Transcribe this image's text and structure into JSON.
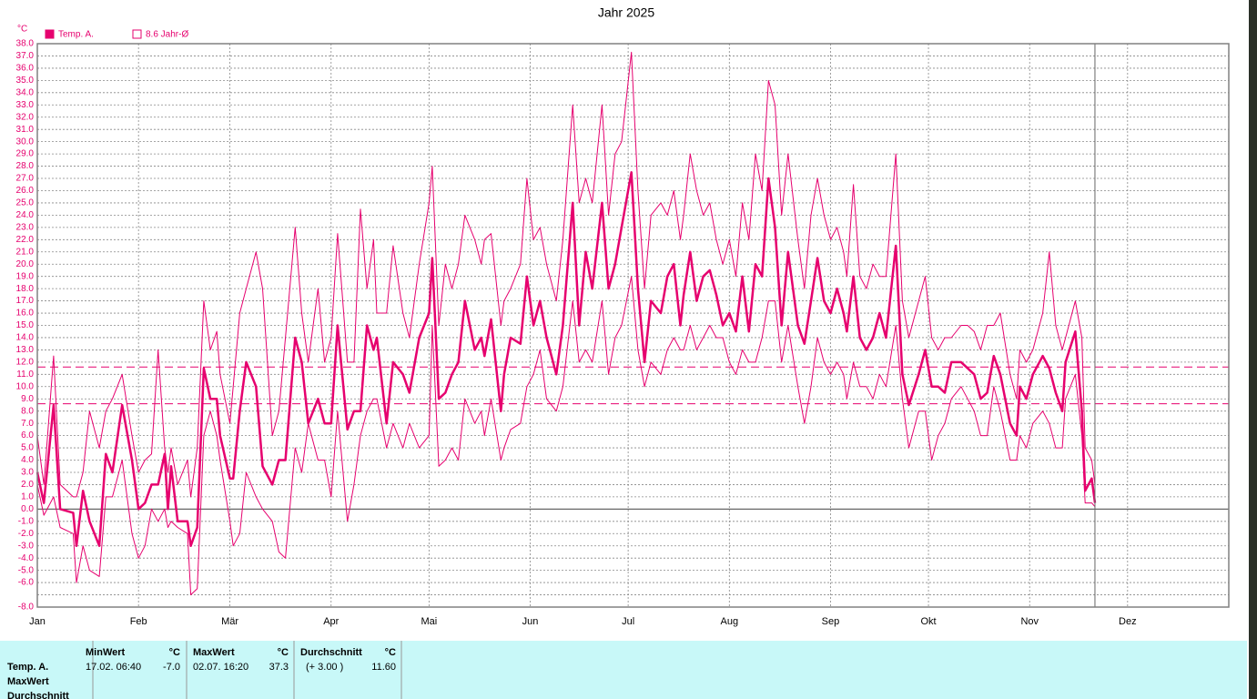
{
  "chart_data": {
    "type": "line",
    "title": "Jahr 2025",
    "y_unit": "°C",
    "color": "#e6006e",
    "grid": true,
    "legend_position": "top-left",
    "xlim": [
      0,
      365
    ],
    "ylim": [
      -8,
      38
    ],
    "xticks": [
      {
        "value": 0,
        "label": "Jan"
      },
      {
        "value": 31,
        "label": "Feb"
      },
      {
        "value": 59,
        "label": "Mär"
      },
      {
        "value": 90,
        "label": "Apr"
      },
      {
        "value": 120,
        "label": "Mai"
      },
      {
        "value": 151,
        "label": "Jun"
      },
      {
        "value": 181,
        "label": "Jul"
      },
      {
        "value": 212,
        "label": "Aug"
      },
      {
        "value": 243,
        "label": "Sep"
      },
      {
        "value": 273,
        "label": "Okt"
      },
      {
        "value": 304,
        "label": "Nov"
      },
      {
        "value": 334,
        "label": "Dez"
      }
    ],
    "yticks": [
      {
        "value": 38,
        "label": "38.0"
      },
      {
        "value": 37,
        "label": "37.0"
      },
      {
        "value": 36,
        "label": "36.0"
      },
      {
        "value": 35,
        "label": "35.0"
      },
      {
        "value": 34,
        "label": "34.0"
      },
      {
        "value": 33,
        "label": "33.0"
      },
      {
        "value": 32,
        "label": "32.0"
      },
      {
        "value": 31,
        "label": "31.0"
      },
      {
        "value": 30,
        "label": "30.0"
      },
      {
        "value": 29,
        "label": "29.0"
      },
      {
        "value": 28,
        "label": "28.0"
      },
      {
        "value": 27,
        "label": "27.0"
      },
      {
        "value": 26,
        "label": "26.0"
      },
      {
        "value": 25,
        "label": "25.0"
      },
      {
        "value": 24,
        "label": "24.0"
      },
      {
        "value": 23,
        "label": "23.0"
      },
      {
        "value": 22,
        "label": "22.0"
      },
      {
        "value": 21,
        "label": "21.0"
      },
      {
        "value": 20,
        "label": "20.0"
      },
      {
        "value": 19,
        "label": "19.0"
      },
      {
        "value": 18,
        "label": "18.0"
      },
      {
        "value": 17,
        "label": "17.0"
      },
      {
        "value": 16,
        "label": "16.0"
      },
      {
        "value": 15,
        "label": "15.0"
      },
      {
        "value": 14,
        "label": "14.0"
      },
      {
        "value": 13,
        "label": "13.0"
      },
      {
        "value": 12,
        "label": "12.0"
      },
      {
        "value": 11,
        "label": "11.0"
      },
      {
        "value": 10,
        "label": "10.0"
      },
      {
        "value": 9,
        "label": "9.0"
      },
      {
        "value": 8,
        "label": "8.0"
      },
      {
        "value": 7,
        "label": "7.0"
      },
      {
        "value": 6,
        "label": "6.0"
      },
      {
        "value": 5,
        "label": "5.0"
      },
      {
        "value": 4,
        "label": "4.0"
      },
      {
        "value": 3,
        "label": "3.0"
      },
      {
        "value": 2,
        "label": "2.0"
      },
      {
        "value": 1,
        "label": "1.0"
      },
      {
        "value": 0,
        "label": "0.0"
      },
      {
        "value": -1,
        "label": "-1.0"
      },
      {
        "value": -2,
        "label": "-2.0"
      },
      {
        "value": -3,
        "label": "-3.0"
      },
      {
        "value": -4,
        "label": "-4.0"
      },
      {
        "value": -5,
        "label": "-5.0"
      },
      {
        "value": -6,
        "label": "-6.0"
      },
      {
        "value": -7,
        "label": null
      },
      {
        "value": -8,
        "label": "-8.0"
      }
    ],
    "reference_lines": [
      {
        "value": 11.6
      },
      {
        "value": 8.6,
        "name": "8.6 Jahr-Ø"
      }
    ],
    "x": [
      0,
      2,
      5,
      7,
      11,
      12,
      14,
      16,
      19,
      21,
      23,
      26,
      29,
      31,
      33,
      35,
      37,
      39,
      40,
      41,
      43,
      46,
      47,
      49,
      51,
      53,
      55,
      56,
      59,
      60,
      62,
      64,
      67,
      69,
      72,
      74,
      76,
      79,
      81,
      83,
      86,
      88,
      90,
      92,
      95,
      97,
      99,
      101,
      103,
      104,
      107,
      109,
      112,
      114,
      117,
      120,
      121,
      123,
      125,
      127,
      129,
      131,
      134,
      136,
      137,
      139,
      142,
      143,
      145,
      148,
      150,
      152,
      154,
      156,
      159,
      161,
      164,
      166,
      168,
      170,
      173,
      175,
      177,
      179,
      182,
      184,
      186,
      188,
      191,
      193,
      195,
      197,
      198,
      200,
      202,
      204,
      206,
      208,
      210,
      212,
      214,
      216,
      218,
      220,
      222,
      224,
      226,
      228,
      230,
      233,
      235,
      237,
      239,
      241,
      243,
      245,
      247,
      248,
      250,
      252,
      254,
      256,
      258,
      260,
      263,
      265,
      267,
      270,
      272,
      274,
      276,
      278,
      280,
      283,
      285,
      287,
      289,
      291,
      293,
      295,
      298,
      300,
      301,
      303,
      305,
      308,
      310,
      312,
      314,
      315,
      318,
      320,
      321,
      323,
      324
    ],
    "series": [
      {
        "name": "Temp. A.",
        "width": 2.5,
        "values": [
          3,
          0.5,
          8.5,
          0,
          -0.3,
          -3,
          1.5,
          -1,
          -3,
          4.5,
          3,
          8.5,
          4,
          0,
          0.5,
          2,
          2,
          4.5,
          0,
          3.5,
          -1,
          -1,
          -3,
          -1.5,
          11.5,
          9,
          9,
          6,
          2.5,
          2.5,
          8,
          12,
          10,
          3.5,
          2,
          4,
          4,
          14,
          12,
          7,
          9,
          7,
          7,
          15,
          6.5,
          8,
          8,
          15,
          13,
          14,
          7,
          12,
          11,
          9.5,
          14,
          16,
          20.5,
          9,
          9.5,
          11,
          12,
          17,
          13,
          14,
          12.5,
          15.5,
          8,
          11,
          14,
          13.5,
          19,
          15,
          17,
          14,
          11,
          15,
          25,
          15,
          21,
          18,
          25,
          18,
          20,
          23,
          27.5,
          18,
          12,
          17,
          16,
          19,
          20,
          15,
          17.5,
          21,
          17,
          19,
          19.5,
          17.5,
          15,
          16,
          14.5,
          19,
          14.5,
          20,
          19,
          27,
          23,
          15,
          21,
          15,
          13.5,
          17,
          20.5,
          17,
          16,
          18,
          16,
          14.5,
          19,
          14,
          13,
          14,
          16,
          14,
          21.5,
          11,
          8.5,
          11,
          13,
          10,
          10,
          9.5,
          12,
          12,
          11.5,
          11,
          9,
          9.5,
          12.5,
          11,
          7,
          6,
          10,
          9,
          11,
          12.5,
          11.5,
          9.5,
          8,
          12,
          14.5,
          8,
          1.5,
          2.5,
          0.5
        ]
      },
      {
        "width": 1,
        "values": [
          6,
          2,
          12.5,
          2,
          1,
          1,
          3,
          8,
          5,
          8,
          9,
          11,
          6,
          3,
          4,
          4.5,
          13,
          5,
          3,
          5,
          2,
          4,
          1,
          5,
          17,
          13,
          14.5,
          11,
          7,
          10,
          16,
          18,
          21,
          18,
          6,
          8,
          14,
          23,
          16,
          12,
          18,
          12,
          14,
          22.5,
          12,
          12,
          24.5,
          18,
          22,
          16,
          16,
          21.5,
          16,
          14,
          20,
          25,
          28,
          15,
          20,
          18,
          20,
          24,
          22,
          20,
          22,
          22.5,
          15,
          17,
          18,
          20,
          27,
          22,
          23,
          20,
          17,
          22,
          33,
          25,
          27,
          25,
          33,
          24,
          29,
          30,
          37.3,
          26,
          18,
          24,
          25,
          24,
          26,
          22,
          24,
          29,
          26,
          24,
          25,
          22,
          20,
          22,
          19,
          25,
          22,
          29,
          26,
          35,
          33,
          24,
          29,
          22,
          18,
          24,
          27,
          24,
          22,
          23,
          21,
          19,
          26.5,
          19,
          18,
          20,
          19,
          19,
          29,
          17,
          14,
          17,
          19,
          14,
          13,
          14,
          14,
          15,
          15,
          14.5,
          13,
          15,
          15,
          16,
          11,
          9,
          13,
          12,
          13,
          16,
          21,
          15,
          13,
          14,
          17,
          14,
          5,
          4,
          2
        ]
      },
      {
        "width": 1,
        "values": [
          2,
          -0.5,
          1,
          -1.5,
          -2,
          -6,
          -3,
          -5,
          -5.5,
          1,
          1,
          4,
          -2,
          -4,
          -3,
          0,
          -1,
          0,
          -1.5,
          -1,
          -1.5,
          -2,
          -7,
          -6.5,
          6,
          8,
          6,
          4,
          -1,
          -3,
          -2,
          3,
          1,
          0,
          -1,
          -3.5,
          -4,
          5,
          3,
          7,
          4,
          4,
          1,
          8,
          -1,
          2,
          6,
          8,
          9,
          9,
          5,
          7,
          5,
          7,
          5,
          6,
          15,
          3.5,
          4,
          5,
          4,
          9,
          7,
          8,
          6,
          9,
          4,
          5,
          6.5,
          7,
          10,
          11,
          13,
          9,
          8,
          10,
          17,
          12,
          13,
          12,
          17,
          11,
          14,
          15,
          19,
          13,
          10,
          12,
          11,
          13,
          14,
          13,
          13,
          15,
          13,
          14,
          15,
          14,
          14,
          12,
          11,
          13,
          12,
          12,
          14,
          17,
          17,
          12,
          15,
          10,
          7,
          10,
          14,
          12,
          11,
          12,
          11,
          9,
          12,
          10,
          10,
          9,
          11,
          10,
          15,
          9,
          5,
          8,
          8,
          4,
          6,
          7,
          9,
          10,
          9,
          8,
          6,
          6,
          10,
          8,
          4,
          4,
          6,
          5,
          7,
          8,
          7,
          5,
          5,
          9,
          11,
          6,
          0.5,
          0.5,
          0.2
        ]
      }
    ],
    "stats": {
      "headers": [
        "MinWert",
        "°C",
        "MaxWert",
        "°C",
        "Durchschnitt",
        "°C"
      ],
      "row_labels": [
        "Temp. A.",
        "MaxWert",
        "Durchschnitt"
      ],
      "row": [
        "17.02.  06:40",
        "-7.0",
        "02.07.  16:20",
        "37.3",
        "(+ 3.00 )",
        "11.60"
      ]
    }
  }
}
